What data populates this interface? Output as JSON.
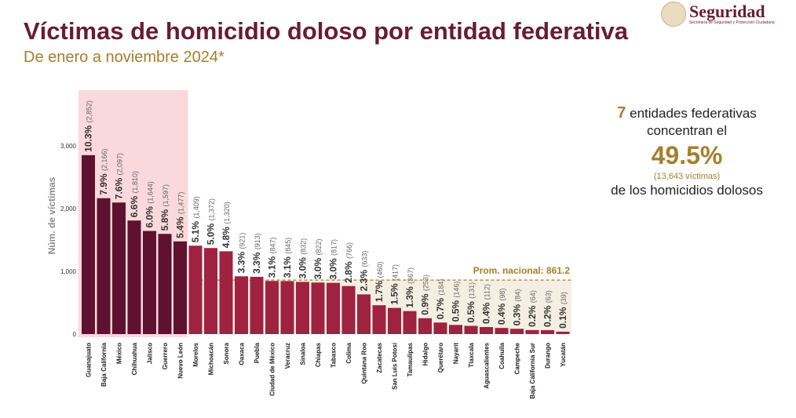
{
  "header": {
    "title": "Víctimas de homicidio doloso por entidad federativa",
    "subtitle": "De enero a noviembre 2024*",
    "logo_title": "Seguridad",
    "logo_subtitle": "Secretaría de Seguridad y Protección Ciudadana"
  },
  "callout": {
    "count": "7",
    "line1": "entidades federativas",
    "line2": "concentran el",
    "percent": "49.5%",
    "victims": "(13,643 víctimas)",
    "line3": "de los homicidios dolosos"
  },
  "colors": {
    "highlight_bar": "#5e1230",
    "bar": "#9f2241",
    "highlight_bg": "#f9d9dc",
    "avg_bg": "#f5efe3",
    "accent": "#a57f2c"
  },
  "chart_data": {
    "type": "bar",
    "ylabel": "Núm. de víctimas",
    "ylim": [
      0,
      3000
    ],
    "yticks": [
      "0",
      "1,000",
      "2,000",
      "3,000"
    ],
    "categories": [
      "Guanajuato",
      "Baja California",
      "México",
      "Chihuahua",
      "Jalisco",
      "Guerrero",
      "Nuevo León",
      "Morelos",
      "Michoacán",
      "Sonora",
      "Oaxaca",
      "Puebla",
      "Ciudad de México",
      "Veracruz",
      "Sinaloa",
      "Chiapas",
      "Tabasco",
      "Colima",
      "Quintana Roo",
      "Zacatecas",
      "San Luis Potosí",
      "Tamaulipas",
      "Hidalgo",
      "Querétaro",
      "Nayarit",
      "Tlaxcala",
      "Aguascalientes",
      "Coahuila",
      "Campeche",
      "Baja California Sur",
      "Durango",
      "Yucatán"
    ],
    "values": [
      2852,
      2166,
      2097,
      1810,
      1644,
      1597,
      1477,
      1409,
      1372,
      1320,
      921,
      913,
      847,
      845,
      832,
      822,
      817,
      766,
      633,
      460,
      417,
      367,
      253,
      184,
      146,
      131,
      112,
      98,
      84,
      64,
      63,
      39
    ],
    "value_labels": [
      "(2,852)",
      "(2,166)",
      "(2,097)",
      "(1,810)",
      "(1,644)",
      "(1,597)",
      "(1,477)",
      "(1,409)",
      "(1,372)",
      "(1,320)",
      "(921)",
      "(913)",
      "(847)",
      "(845)",
      "(832)",
      "(822)",
      "(817)",
      "(766)",
      "(633)",
      "(460)",
      "(417)",
      "(367)",
      "(253)",
      "(184)",
      "(146)",
      "(131)",
      "(112)",
      "(98)",
      "(84)",
      "(64)",
      "(63)",
      "(39)"
    ],
    "percents": [
      "10.3%",
      "7.9%",
      "7.6%",
      "6.6%",
      "6.0%",
      "5.8%",
      "5.4%",
      "5.1%",
      "5.0%",
      "4.8%",
      "3.3%",
      "3.3%",
      "3.1%",
      "3.1%",
      "3.0%",
      "3.0%",
      "3.0%",
      "2.8%",
      "2.3%",
      "1.7%",
      "1.5%",
      "1.3%",
      "0.9%",
      "0.7%",
      "0.5%",
      "0.5%",
      "0.4%",
      "0.4%",
      "0.3%",
      "0.2%",
      "0.2%",
      "0.1%"
    ],
    "highlighted_count": 7,
    "average": {
      "value": 861.2,
      "label": "Prom. nacional: 861.2"
    },
    "grid": false
  }
}
